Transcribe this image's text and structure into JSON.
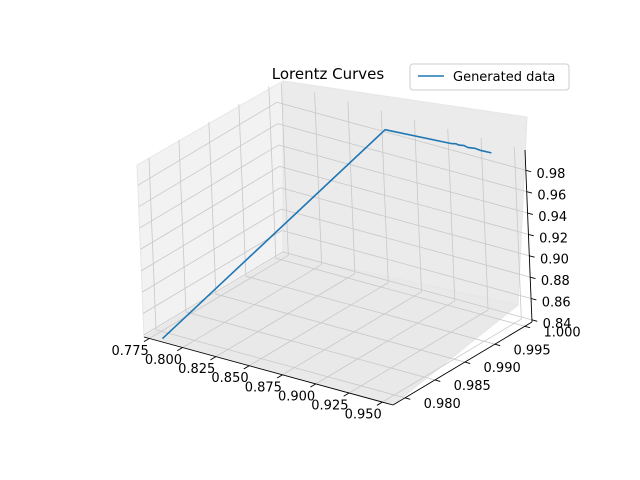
{
  "chart_data": {
    "type": "line",
    "projection": "3d",
    "title": "Lorentz Curves",
    "legend_position": "top-right",
    "series": [
      {
        "name": "Generated data",
        "color": "#1f77b4",
        "points": [
          {
            "x": 0.785,
            "y": 0.978,
            "z": 0.8413
          },
          {
            "x": 0.858,
            "y": 1.0,
            "z": 0.988
          },
          {
            "x": 0.909,
            "y": 0.9998,
            "z": 0.993
          },
          {
            "x": 0.911,
            "y": 1.0001,
            "z": 0.9925
          },
          {
            "x": 0.914,
            "y": 0.9998,
            "z": 0.9935
          },
          {
            "x": 0.917,
            "y": 1.0001,
            "z": 0.9928
          },
          {
            "x": 0.921,
            "y": 0.9998,
            "z": 0.9935
          },
          {
            "x": 0.925,
            "y": 1.0001,
            "z": 0.993
          },
          {
            "x": 0.93,
            "y": 0.9999,
            "z": 0.9935
          },
          {
            "x": 0.938,
            "y": 1.0,
            "z": 0.9935
          }
        ]
      }
    ],
    "x_axis": {
      "ticks": [
        "0.775",
        "0.800",
        "0.825",
        "0.850",
        "0.875",
        "0.900",
        "0.925",
        "0.950"
      ],
      "tick_values": [
        0.775,
        0.8,
        0.825,
        0.85,
        0.875,
        0.9,
        0.925,
        0.95
      ]
    },
    "y_axis": {
      "ticks": [
        "0.980",
        "0.985",
        "0.990",
        "0.995",
        "1.000"
      ],
      "tick_values": [
        0.98,
        0.985,
        0.99,
        0.995,
        1.0
      ]
    },
    "z_axis": {
      "ticks": [
        "0.84",
        "0.86",
        "0.88",
        "0.90",
        "0.92",
        "0.94",
        "0.96",
        "0.98"
      ],
      "tick_values": [
        0.84,
        0.86,
        0.88,
        0.9,
        0.92,
        0.94,
        0.96,
        0.98
      ]
    },
    "grid": true,
    "xlabel": "",
    "ylabel": "",
    "zlabel": ""
  }
}
